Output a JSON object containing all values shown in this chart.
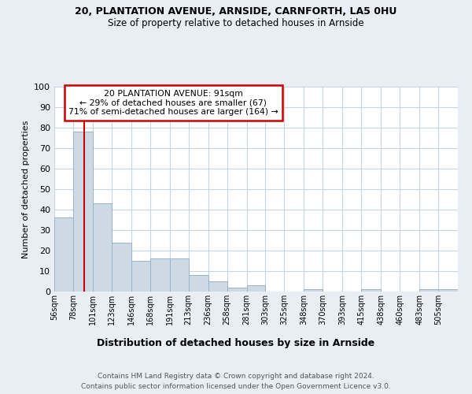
{
  "title1": "20, PLANTATION AVENUE, ARNSIDE, CARNFORTH, LA5 0HU",
  "title2": "Size of property relative to detached houses in Arnside",
  "xlabel": "Distribution of detached houses by size in Arnside",
  "ylabel": "Number of detached properties",
  "categories": [
    "56sqm",
    "78sqm",
    "101sqm",
    "123sqm",
    "146sqm",
    "168sqm",
    "191sqm",
    "213sqm",
    "236sqm",
    "258sqm",
    "281sqm",
    "303sqm",
    "325sqm",
    "348sqm",
    "370sqm",
    "393sqm",
    "415sqm",
    "438sqm",
    "460sqm",
    "483sqm",
    "505sqm"
  ],
  "values": [
    36,
    78,
    43,
    24,
    15,
    16,
    16,
    8,
    5,
    2,
    3,
    0,
    0,
    1,
    0,
    0,
    1,
    0,
    0,
    1,
    1
  ],
  "bar_color": "#cdd9e5",
  "bar_edge_color": "#9ab3c8",
  "property_line_x": 91,
  "property_line_label": "20 PLANTATION AVENUE: 91sqm",
  "annotation_line1": "← 29% of detached houses are smaller (67)",
  "annotation_line2": "71% of semi-detached houses are larger (164) →",
  "annotation_box_color": "#ffffff",
  "annotation_box_edge_color": "#cc0000",
  "line_color": "#cc0000",
  "ylim": [
    0,
    100
  ],
  "yticks": [
    0,
    10,
    20,
    30,
    40,
    50,
    60,
    70,
    80,
    90,
    100
  ],
  "bg_color": "#e8eef4",
  "plot_bg_color": "#ffffff",
  "footer1": "Contains HM Land Registry data © Crown copyright and database right 2024.",
  "footer2": "Contains public sector information licensed under the Open Government Licence v3.0.",
  "bin_edges": [
    56,
    78,
    101,
    123,
    146,
    168,
    191,
    213,
    236,
    258,
    281,
    303,
    325,
    348,
    370,
    393,
    415,
    438,
    460,
    483,
    505,
    528
  ]
}
